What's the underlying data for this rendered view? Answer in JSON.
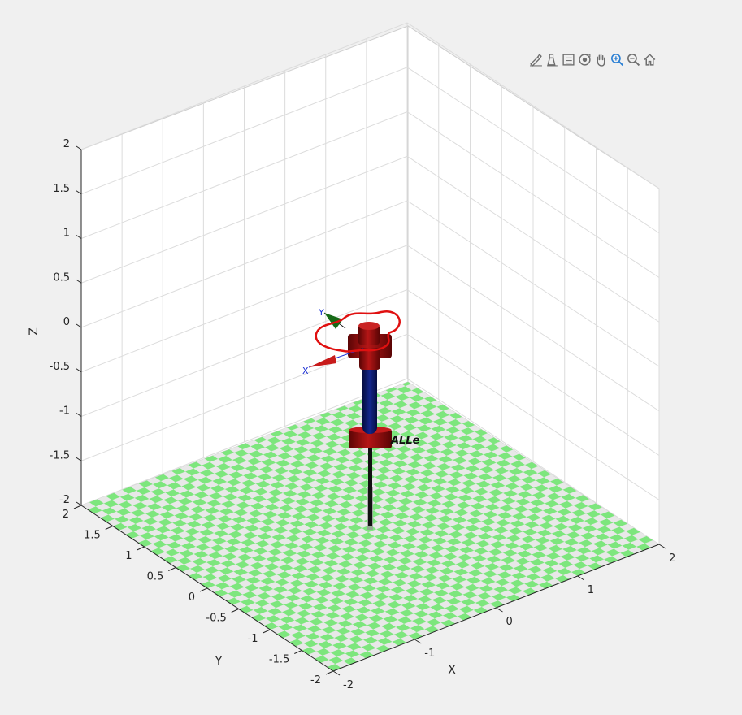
{
  "figure": {
    "background": "#f0f0f0",
    "axes_background": "#ffffff",
    "grid_color": "#dcdcdc",
    "axis_color": "#262626",
    "floor_colors": [
      "#7de67d",
      "#e8e8e8"
    ],
    "robot_link_color": "#9b0f0f",
    "robot_column_color": "#0a1a6b",
    "trajectory_color": "#e01010"
  },
  "toolbar": {
    "buttons": [
      {
        "name": "brush-icon",
        "label": ""
      },
      {
        "name": "data-tips-icon",
        "label": ""
      },
      {
        "name": "insert-legend-icon",
        "label": ""
      },
      {
        "name": "rotate-3d-icon",
        "label": ""
      },
      {
        "name": "pan-hand-icon",
        "label": ""
      },
      {
        "name": "zoom-in-icon",
        "label": "",
        "active": true
      },
      {
        "name": "zoom-out-icon",
        "label": ""
      },
      {
        "name": "home-icon",
        "label": ""
      }
    ]
  },
  "axes": {
    "xlabel": "X",
    "ylabel": "Y",
    "zlabel": "Z",
    "z_ticks": [
      "2",
      "1.5",
      "1",
      "0.5",
      "0",
      "-0.5",
      "-1",
      "-1.5",
      "-2"
    ],
    "y_ticks": [
      "2",
      "1.5",
      "1",
      "0.5",
      "0",
      "-0.5",
      "-1",
      "-1.5",
      "-2"
    ],
    "x_ticks": [
      "-2",
      "-1",
      "0",
      "1",
      "2"
    ]
  },
  "robot": {
    "name_label": "ALLe",
    "frame_x_label": "X",
    "frame_y_label": "Y"
  }
}
